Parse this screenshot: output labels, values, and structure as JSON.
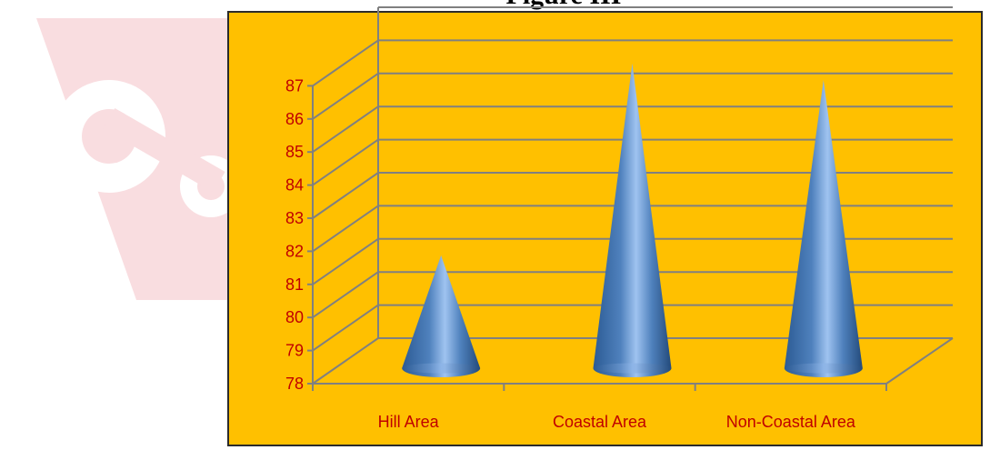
{
  "figure": {
    "title": "Figure III"
  },
  "colors": {
    "plot_background": "#ffc000",
    "gridline": "#808080",
    "tick_label": "#c00000",
    "cone": "#4f81bd",
    "watermark": "#f7d9db"
  },
  "chart_data": {
    "type": "bar",
    "bar_shape": "3d-cone",
    "categories": [
      "Hill Area",
      "Coastal Area",
      "Non-Coastal Area"
    ],
    "values": [
      81.3,
      87.1,
      86.6
    ],
    "ylim": [
      78,
      87
    ],
    "yticks": [
      78,
      79,
      80,
      81,
      82,
      83,
      84,
      85,
      86,
      87
    ],
    "grid": true,
    "legend": "none",
    "xlabel": "",
    "ylabel": ""
  }
}
